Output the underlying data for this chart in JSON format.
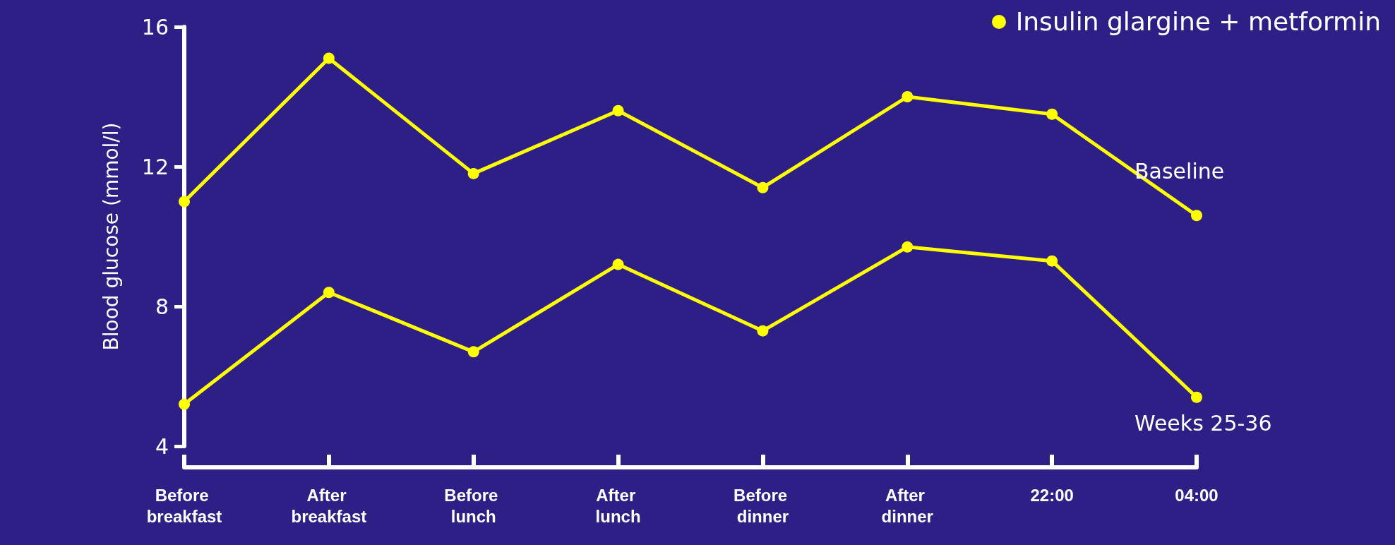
{
  "chart_data": {
    "type": "line",
    "ylabel": "Blood glucose (mmol/l)",
    "legend_title": "Insulin glargine + metformin",
    "categories": [
      "Before breakfast",
      "After breakfast",
      "Before lunch",
      "After lunch",
      "Before dinner",
      "After dinner",
      "22:00",
      "04:00"
    ],
    "series": [
      {
        "name": "Baseline",
        "color": "#ffff00",
        "values": [
          11.0,
          15.1,
          11.8,
          13.6,
          11.4,
          14.0,
          13.5,
          10.6
        ]
      },
      {
        "name": "Weeks 25-36",
        "color": "#ffff00",
        "values": [
          5.2,
          8.4,
          6.7,
          9.2,
          7.3,
          9.7,
          9.3,
          5.4
        ]
      }
    ],
    "ylim": [
      4,
      16
    ],
    "yticks": [
      4,
      8,
      12,
      16
    ],
    "marker": "circle",
    "line_style": "solid",
    "grid": false
  }
}
